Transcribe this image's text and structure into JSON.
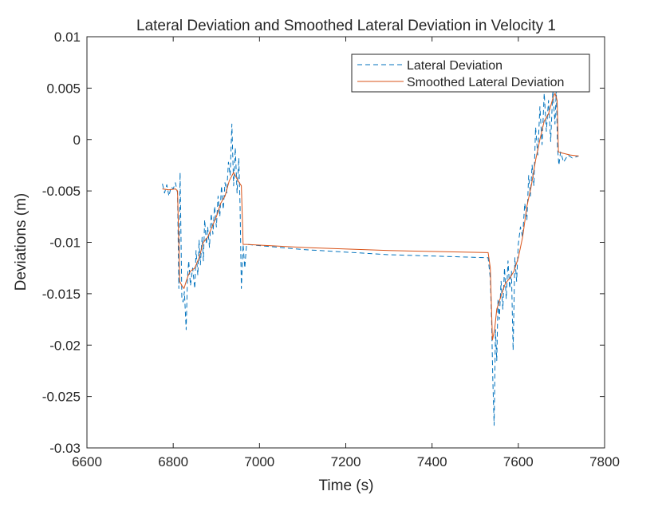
{
  "chart_data": {
    "type": "line",
    "title": "Lateral Deviation and Smoothed Lateral Deviation in Velocity 1",
    "xlabel": "Time (s)",
    "ylabel": "Deviations (m)",
    "xlim": [
      6600,
      7800
    ],
    "ylim": [
      -0.03,
      0.01
    ],
    "xticks": [
      6600,
      6800,
      7000,
      7200,
      7400,
      7600,
      7800
    ],
    "xtick_labels": [
      "6600",
      "6800",
      "7000",
      "7200",
      "7400",
      "7600",
      "7800"
    ],
    "yticks": [
      0.01,
      0.005,
      0,
      -0.005,
      -0.01,
      -0.015,
      -0.02,
      -0.025,
      -0.03
    ],
    "ytick_labels": [
      "0.01",
      "0.005",
      "0",
      "-0.005",
      "-0.01",
      "-0.015",
      "-0.02",
      "-0.025",
      "-0.03"
    ],
    "grid": false,
    "legend_position": "top-right",
    "series": [
      {
        "name": "Lateral Deviation",
        "style": "dashed",
        "color": "#0072BD",
        "x": [
          6775,
          6780,
          6785,
          6790,
          6795,
          6800,
          6805,
          6810,
          6813,
          6816,
          6820,
          6823,
          6826,
          6830,
          6833,
          6836,
          6840,
          6845,
          6850,
          6853,
          6857,
          6860,
          6863,
          6867,
          6870,
          6873,
          6877,
          6880,
          6884,
          6888,
          6892,
          6896,
          6900,
          6904,
          6908,
          6912,
          6916,
          6920,
          6924,
          6928,
          6932,
          6936,
          6940,
          6944,
          6948,
          6952,
          6955,
          6958,
          6962,
          6966,
          6970,
          7100,
          7300,
          7530,
          7535,
          7538,
          7541,
          7544,
          7547,
          7550,
          7553,
          7556,
          7560,
          7564,
          7568,
          7572,
          7576,
          7580,
          7584,
          7588,
          7592,
          7596,
          7600,
          7605,
          7610,
          7615,
          7620,
          7624,
          7628,
          7632,
          7636,
          7640,
          7645,
          7650,
          7655,
          7660,
          7665,
          7670,
          7675,
          7680,
          7685,
          7688,
          7691,
          7694,
          7698,
          7705,
          7715,
          7725,
          7740
        ],
        "y": [
          -0.0043,
          -0.0052,
          -0.0044,
          -0.0055,
          -0.0046,
          -0.0048,
          -0.0042,
          -0.0052,
          -0.0145,
          -0.0032,
          -0.0155,
          -0.0158,
          -0.0148,
          -0.0185,
          -0.0135,
          -0.0118,
          -0.0142,
          -0.0125,
          -0.0145,
          -0.0108,
          -0.0132,
          -0.0098,
          -0.0122,
          -0.0095,
          -0.0118,
          -0.0078,
          -0.0102,
          -0.0085,
          -0.0105,
          -0.0072,
          -0.0092,
          -0.0065,
          -0.0085,
          -0.0055,
          -0.0075,
          -0.0045,
          -0.0068,
          -0.0042,
          -0.0052,
          -0.0022,
          -0.0035,
          0.0015,
          -0.0045,
          -0.0008,
          -0.0052,
          -0.0018,
          -0.0065,
          -0.0145,
          -0.0102,
          -0.0125,
          -0.0102,
          -0.0107,
          -0.0112,
          -0.0115,
          -0.0135,
          -0.0175,
          -0.0235,
          -0.0278,
          -0.0185,
          -0.0215,
          -0.0155,
          -0.0175,
          -0.0138,
          -0.0165,
          -0.0125,
          -0.0155,
          -0.0118,
          -0.0145,
          -0.0128,
          -0.0205,
          -0.0115,
          -0.0138,
          -0.0102,
          -0.0085,
          -0.0095,
          -0.0062,
          -0.0078,
          -0.0035,
          -0.0055,
          -0.0025,
          -0.0045,
          0.0012,
          -0.0015,
          0.0032,
          -0.0005,
          0.0045,
          0.0008,
          0.0038,
          -0.0002,
          0.0048,
          0.0015,
          0.0048,
          -0.0008,
          -0.0025,
          -0.0012,
          -0.0022,
          -0.0015,
          -0.0018,
          -0.0016
        ]
      },
      {
        "name": "Smoothed Lateral Deviation",
        "style": "solid",
        "color": "#D95319",
        "x": [
          6775,
          6790,
          6805,
          6810,
          6815,
          6820,
          6825,
          6830,
          6835,
          6840,
          6850,
          6860,
          6870,
          6880,
          6890,
          6900,
          6910,
          6920,
          6930,
          6940,
          6950,
          6958,
          6962,
          6970,
          7100,
          7300,
          7530,
          7535,
          7540,
          7545,
          7550,
          7560,
          7570,
          7580,
          7590,
          7600,
          7610,
          7620,
          7630,
          7640,
          7650,
          7660,
          7670,
          7680,
          7685,
          7690,
          7693,
          7700,
          7720,
          7740
        ],
        "y": [
          -0.0048,
          -0.0049,
          -0.0048,
          -0.005,
          -0.0138,
          -0.0142,
          -0.0145,
          -0.0138,
          -0.0132,
          -0.0128,
          -0.0125,
          -0.0115,
          -0.01,
          -0.0095,
          -0.0085,
          -0.0075,
          -0.0062,
          -0.0055,
          -0.004,
          -0.0032,
          -0.004,
          -0.0045,
          -0.0102,
          -0.0102,
          -0.0105,
          -0.0108,
          -0.011,
          -0.0125,
          -0.0195,
          -0.0185,
          -0.0165,
          -0.0152,
          -0.014,
          -0.0135,
          -0.0128,
          -0.0115,
          -0.0095,
          -0.0065,
          -0.0045,
          -0.002,
          0.0,
          0.0018,
          0.0025,
          0.004,
          0.0045,
          0.0038,
          -0.0012,
          -0.0013,
          -0.0015,
          -0.0016
        ]
      }
    ]
  }
}
